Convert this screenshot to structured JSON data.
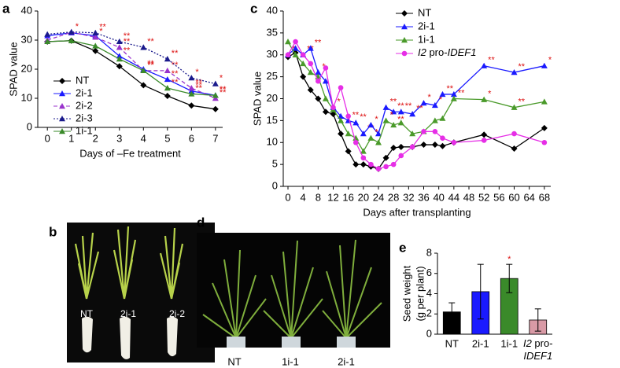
{
  "chart_data": [
    {
      "type": "line",
      "panel": "a",
      "xlabel": "Days of –Fe treatment",
      "ylabel": "SPAD value",
      "x": [
        0,
        1,
        2,
        3,
        4,
        5,
        6,
        7
      ],
      "xlim": [
        -0.4,
        7.3
      ],
      "xticks": [
        0,
        1,
        2,
        3,
        4,
        5,
        6,
        7
      ],
      "ylim": [
        0,
        40
      ],
      "yticks": [
        0,
        10,
        20,
        30,
        40
      ],
      "legend": "lower left",
      "series": [
        {
          "name": "NT",
          "color": "#000000",
          "marker": "diamond",
          "dash": "solid",
          "values": [
            29.5,
            29.8,
            26.3,
            21,
            14.5,
            10.8,
            7.5,
            6.3
          ],
          "significance": [
            null,
            null,
            null,
            null,
            null,
            null,
            null,
            null
          ]
        },
        {
          "name": "2i-1",
          "color": "#1a1aff",
          "marker": "triangle",
          "dash": "solid",
          "values": [
            31.5,
            32.5,
            31.5,
            24.5,
            20,
            16.5,
            12.5,
            11
          ],
          "significance": [
            null,
            null,
            null,
            "**",
            "**",
            "**",
            "**",
            "**"
          ]
        },
        {
          "name": "2i-2",
          "color": "#9933cc",
          "marker": "triangle",
          "dash": "dashed",
          "values": [
            30,
            32.7,
            31,
            27.5,
            19.5,
            19.5,
            13.5,
            10
          ],
          "significance": [
            null,
            "*",
            "*",
            "**",
            "**",
            "**",
            "**",
            "**"
          ]
        },
        {
          "name": "2i-3",
          "color": "#1a1a8c",
          "marker": "triangle",
          "dash": "dotted",
          "values": [
            32,
            32.8,
            32.5,
            29.5,
            27.5,
            23.5,
            17,
            15
          ],
          "significance": [
            null,
            null,
            "**",
            "**",
            "**",
            "**",
            "*",
            "*"
          ]
        },
        {
          "name": "1i-1",
          "color": "#3a8a2a",
          "marker": "triangle",
          "dash": "solid",
          "values": [
            29.5,
            29.8,
            28,
            23.5,
            19.5,
            13.5,
            11.5,
            11
          ],
          "significance": [
            null,
            null,
            null,
            null,
            "**",
            "**",
            "**",
            "**"
          ]
        }
      ]
    },
    {
      "type": "line",
      "panel": "c",
      "xlabel": "Days after transplanting",
      "ylabel": "SPAD value",
      "x": [
        0,
        2,
        4,
        6,
        8,
        10,
        12,
        14,
        16,
        18,
        20,
        22,
        24,
        26,
        28,
        30,
        33,
        36,
        39,
        41,
        44,
        52,
        60,
        68
      ],
      "xlim": [
        -1.25,
        69.7
      ],
      "xticks": [
        0,
        4,
        8,
        12,
        16,
        20,
        24,
        28,
        32,
        36,
        40,
        44,
        48,
        52,
        56,
        60,
        64,
        68
      ],
      "ylim": [
        0,
        40
      ],
      "yticks": [
        0,
        5,
        10,
        15,
        20,
        25,
        30,
        35,
        40
      ],
      "legend": "upper center",
      "series": [
        {
          "name": "NT",
          "color": "#000000",
          "marker": "diamond",
          "dash": "solid",
          "values": [
            29.5,
            30.5,
            25,
            22,
            20,
            17,
            16.5,
            12,
            8,
            5,
            5,
            4.5,
            4,
            6.5,
            8.8,
            9,
            9,
            9.5,
            9.5,
            9.2,
            10,
            11.8,
            8.6,
            13.3
          ],
          "significance": [
            null,
            null,
            null,
            null,
            null,
            null,
            null,
            null,
            null,
            null,
            null,
            null,
            null,
            null,
            null,
            null,
            null,
            null,
            null,
            null,
            null,
            null,
            null,
            null
          ]
        },
        {
          "name": "2i-1",
          "color": "#1a1aff",
          "marker": "triangle",
          "dash": "solid",
          "values": [
            30,
            31.5,
            30,
            31.5,
            26,
            24,
            18,
            16,
            15,
            14.5,
            12,
            14,
            12,
            18,
            17,
            17,
            16.5,
            19,
            18.5,
            21,
            21,
            27.5,
            26,
            27.5
          ],
          "significance": [
            "*",
            null,
            "**",
            "**",
            "*",
            null,
            "*",
            null,
            "**",
            "**",
            "**",
            "*",
            null,
            "**",
            "**",
            "**",
            "**",
            "*",
            "*",
            "**",
            null,
            "**",
            "**",
            "*"
          ]
        },
        {
          "name": "1i-1",
          "color": "#4a9a2a",
          "marker": "triangle",
          "dash": "solid",
          "values": [
            33,
            30,
            28,
            26,
            25,
            20,
            17.5,
            15,
            12,
            11,
            8,
            11,
            10,
            15,
            14,
            14.5,
            12,
            12.5,
            15,
            15.5,
            20,
            19.8,
            18,
            19.3
          ],
          "significance": [
            null,
            null,
            null,
            null,
            null,
            null,
            null,
            null,
            null,
            null,
            null,
            "*",
            null,
            "*",
            "**",
            null,
            null,
            null,
            null,
            null,
            "**",
            "*",
            "**",
            null
          ]
        },
        {
          "name": "I2 pro-IDEF1",
          "color": "#e62ee6",
          "marker": "circle",
          "dash": "solid",
          "values": [
            30,
            33,
            30,
            28,
            24,
            27,
            18,
            22.5,
            16,
            10,
            6.5,
            5,
            4,
            4.5,
            5,
            7,
            9,
            12.5,
            12.5,
            11,
            10,
            10.5,
            12,
            10
          ],
          "significance": [
            null,
            null,
            null,
            null,
            null,
            null,
            null,
            null,
            null,
            null,
            null,
            null,
            null,
            null,
            null,
            null,
            null,
            null,
            null,
            null,
            null,
            null,
            null,
            null
          ]
        }
      ]
    },
    {
      "type": "bar",
      "panel": "e",
      "ylabel": [
        "Seed weight",
        "(g per plant)"
      ],
      "categories": [
        "NT",
        "2i-1",
        "1i-1",
        "I2 pro-IDEF1"
      ],
      "values": [
        2.2,
        4.2,
        5.5,
        1.4
      ],
      "errors": [
        0.9,
        2.7,
        1.4,
        1.1
      ],
      "colors": [
        "#000000",
        "#1a1aff",
        "#3a8a2a",
        "#d99aa6"
      ],
      "significance": [
        null,
        null,
        "*",
        null
      ],
      "ylim": [
        0,
        8
      ],
      "yticks": [
        0,
        2,
        4,
        6,
        8
      ]
    }
  ],
  "photos": [
    {
      "panel": "b",
      "labels": [
        "NT",
        "2i-1",
        "2i-2"
      ]
    },
    {
      "panel": "d",
      "labels": [
        "NT",
        "1i-1",
        "2i-1"
      ]
    }
  ]
}
